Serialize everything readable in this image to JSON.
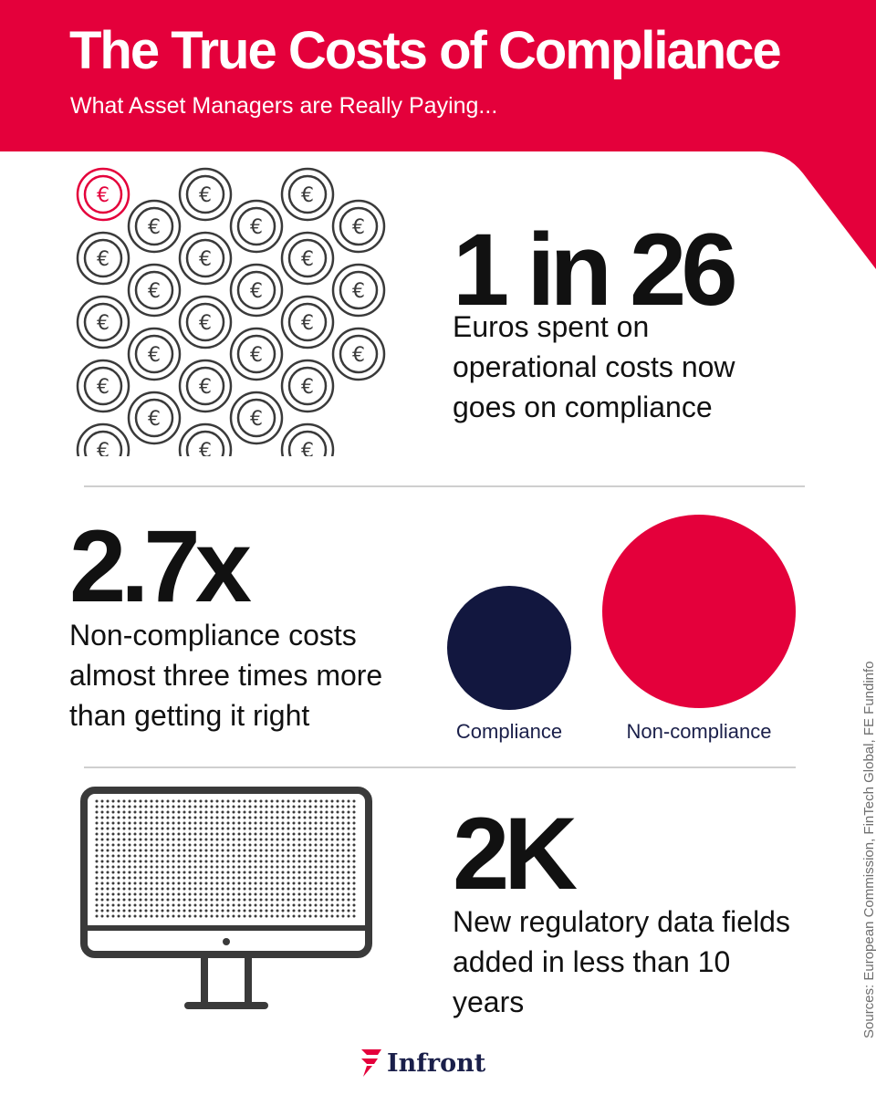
{
  "header": {
    "title": "The True Costs of Compliance",
    "subtitle": "What Asset Managers are Really Paying...",
    "background_color": "#e4003b"
  },
  "stat_1": {
    "value": "1 in 26",
    "description": "Euros spent on operational costs now goes on compliance",
    "icon": "euro-coins-icon",
    "highlight_coin_color": "#e4003b"
  },
  "stat_2": {
    "value": "2.7x",
    "description": "Non-compliance costs almost three times more than getting it right",
    "compliance_label": "Compliance",
    "non_compliance_label": "Non-compliance",
    "compliance_color": "#12173f",
    "non_compliance_color": "#e4003b"
  },
  "stat_3": {
    "value": "2K",
    "description": "New regulatory data fields added in less than 10 years",
    "icon": "monitor-icon"
  },
  "sources": "Sources: European Commission, FinTech Global, FE Fundinfo",
  "logo": {
    "text": "Infront",
    "icon": "infront-logo-icon"
  }
}
